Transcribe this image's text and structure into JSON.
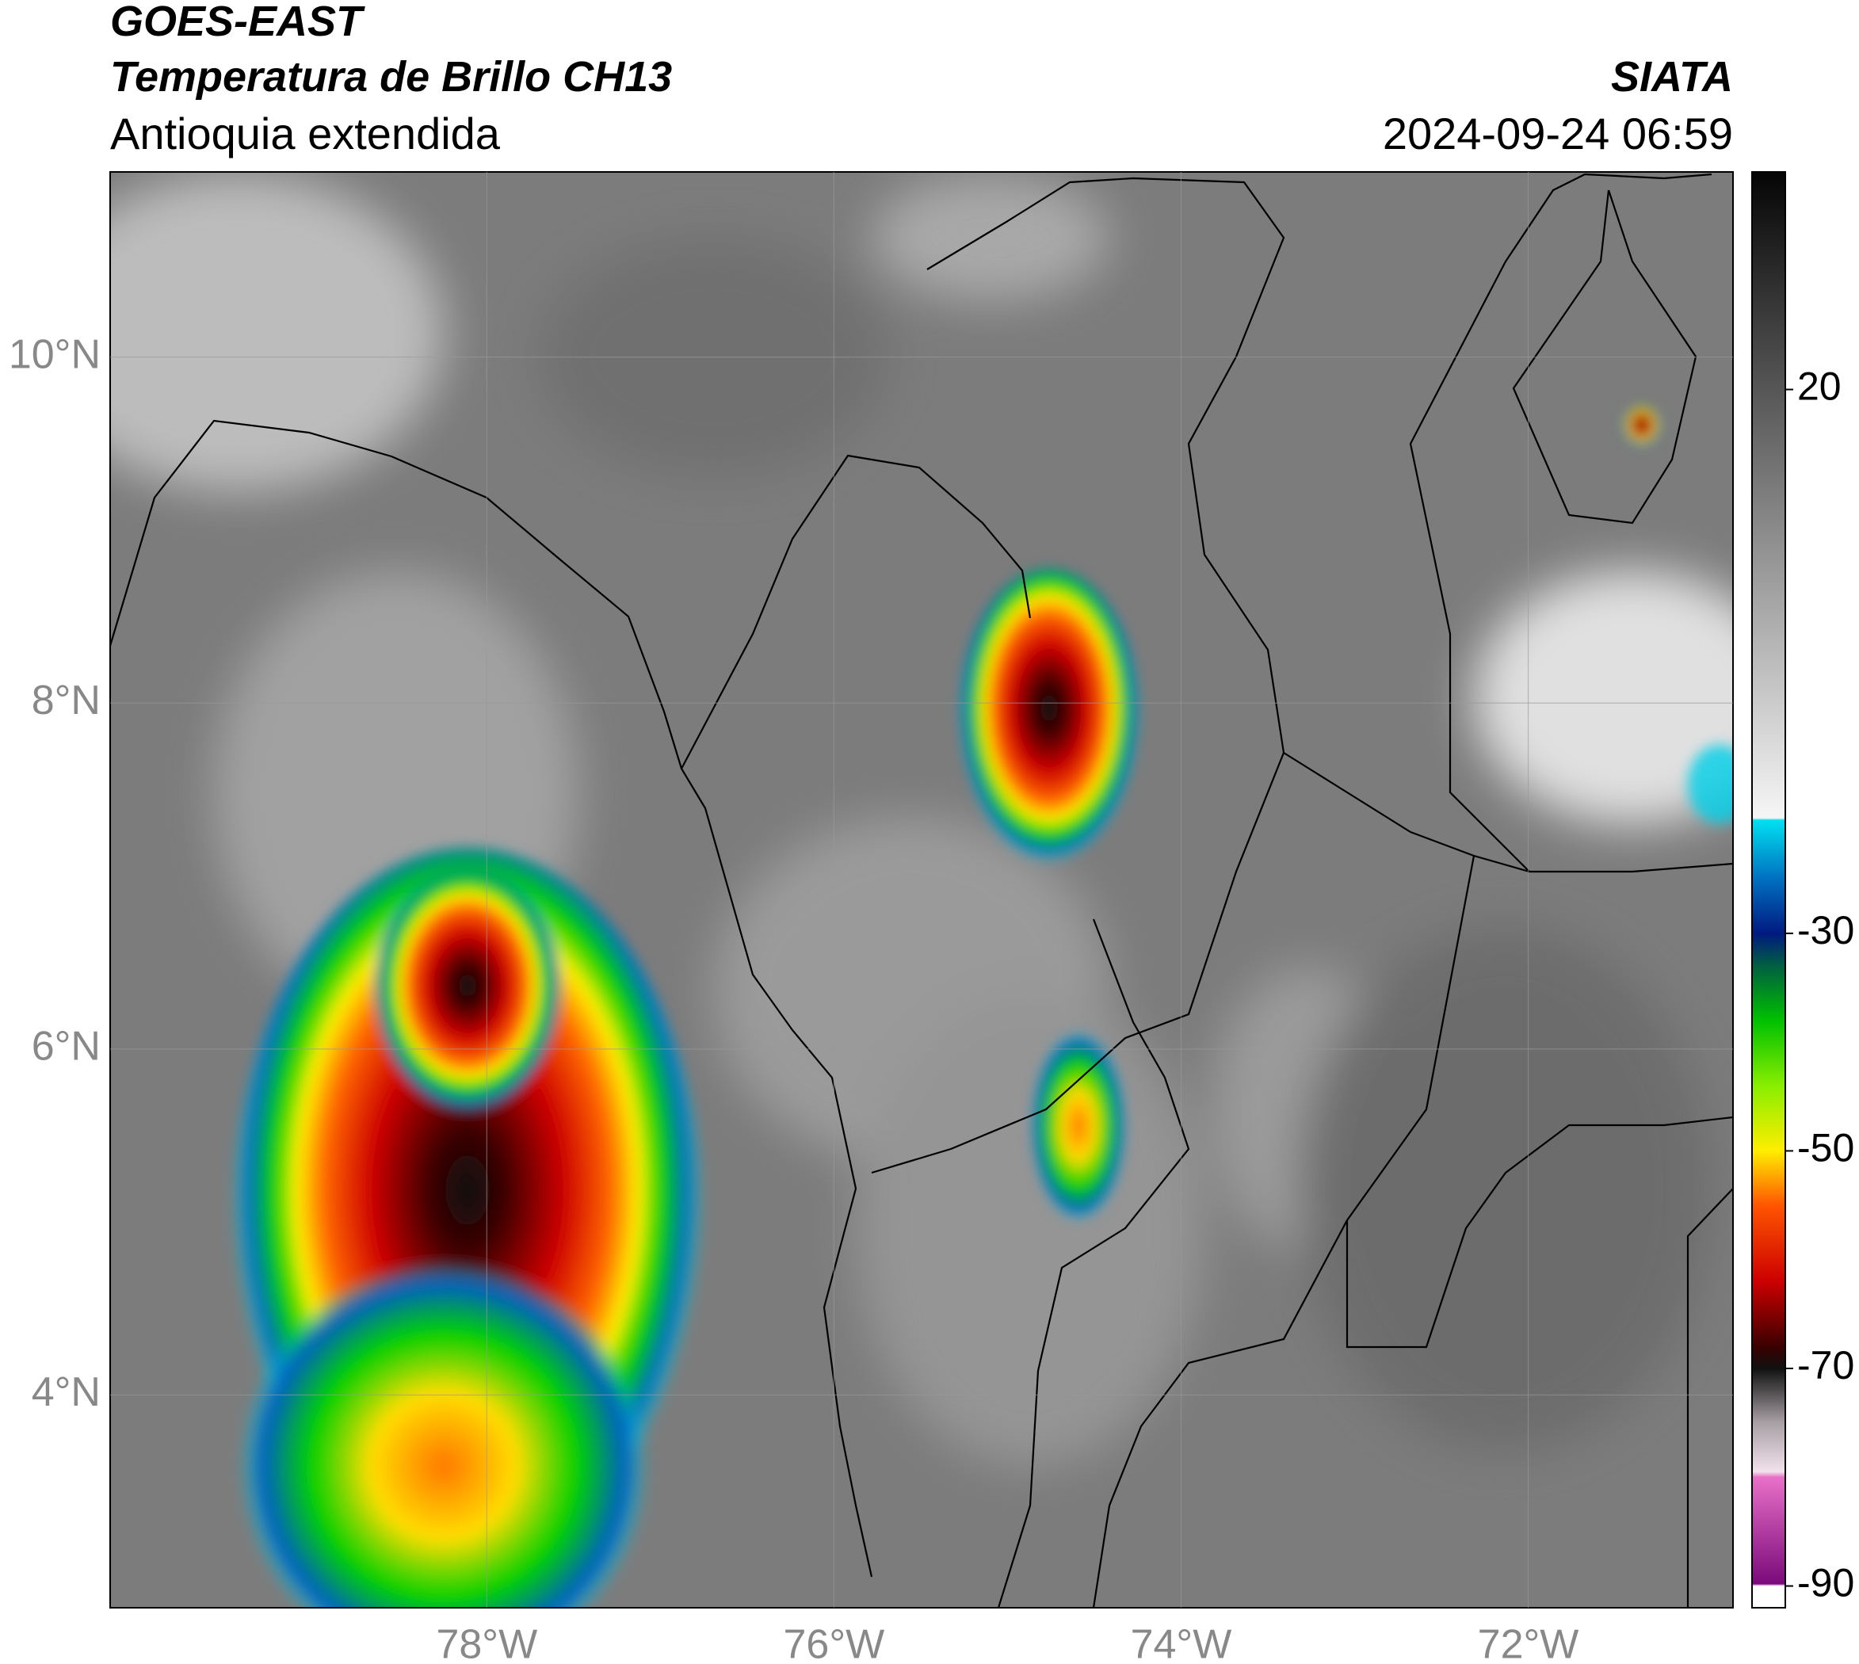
{
  "header": {
    "title": "GOES-EAST",
    "subtitle": "Temperatura de Brillo CH13",
    "region": "Antioquia extendida",
    "source": "SIATA",
    "datetime": "2024-09-24 06:59"
  },
  "map": {
    "lonlim": [
      -80.17,
      -70.82
    ],
    "latlim": [
      2.77,
      11.07
    ],
    "xticks": [
      {
        "value": -78,
        "label": "78°W"
      },
      {
        "value": -76,
        "label": "76°W"
      },
      {
        "value": -74,
        "label": "74°W"
      },
      {
        "value": -72,
        "label": "72°W"
      }
    ],
    "yticks": [
      {
        "value": 10,
        "label": "10°N"
      },
      {
        "value": 8,
        "label": "8°N"
      },
      {
        "value": 6,
        "label": "6°N"
      },
      {
        "value": 4,
        "label": "4°N"
      }
    ],
    "grid": true
  },
  "colorbar": {
    "lim": [
      -92,
      40
    ],
    "ticks": [
      20,
      -30,
      -50,
      -70,
      -90
    ],
    "stops": [
      {
        "value": -92,
        "color": "#ffffff"
      },
      {
        "value": -90,
        "color": "#ffffff"
      },
      {
        "value": -89.8,
        "color": "#7a0a7a"
      },
      {
        "value": -80,
        "color": "#e870c8"
      },
      {
        "value": -79.5,
        "color": "#f2e2ec"
      },
      {
        "value": -75,
        "color": "#a8a0a5"
      },
      {
        "value": -70,
        "color": "#111111"
      },
      {
        "value": -68,
        "color": "#3a0000"
      },
      {
        "value": -62,
        "color": "#cc0000"
      },
      {
        "value": -55,
        "color": "#ff5500"
      },
      {
        "value": -50,
        "color": "#ffee00"
      },
      {
        "value": -44,
        "color": "#88ee00"
      },
      {
        "value": -38,
        "color": "#00c000"
      },
      {
        "value": -33,
        "color": "#005f40"
      },
      {
        "value": -30,
        "color": "#001a80"
      },
      {
        "value": -25,
        "color": "#0070c0"
      },
      {
        "value": -19.6,
        "color": "#00e0f0"
      },
      {
        "value": -19.4,
        "color": "#f6f6f6"
      },
      {
        "value": 40,
        "color": "#050505"
      }
    ]
  }
}
